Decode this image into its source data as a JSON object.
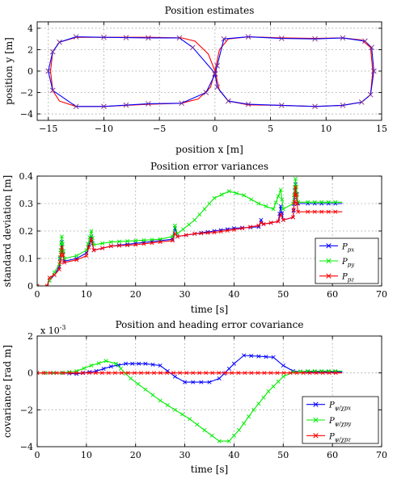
{
  "chart_data": [
    {
      "type": "line",
      "title": "Position estimates",
      "xlabel": "position x [m]",
      "ylabel": "position y [m]",
      "xlim": [
        -16,
        15
      ],
      "ylim": [
        -4.6,
        4.6
      ],
      "xticks": [
        -15,
        -10,
        -5,
        0,
        5,
        10,
        15
      ],
      "yticks": [
        -4,
        -2,
        0,
        2,
        4
      ],
      "grid": true,
      "colors": {
        "estimate": "#0000ff",
        "reference": "#ff0000",
        "marker": "#7a2a8a"
      },
      "series": [
        {
          "color": "#ff0000",
          "points": [
            [
              0,
              0
            ],
            [
              -0.6,
              1.6
            ],
            [
              -1.8,
              2.8
            ],
            [
              -3,
              3.1
            ],
            [
              -6,
              3.15
            ],
            [
              -10,
              3.15
            ],
            [
              -12.5,
              3.15
            ],
            [
              -14,
              2.7
            ],
            [
              -14.6,
              1.8
            ],
            [
              -14.8,
              0
            ],
            [
              -14.6,
              -1.8
            ],
            [
              -14,
              -2.8
            ],
            [
              -12.5,
              -3.3
            ],
            [
              -10,
              -3.3
            ],
            [
              -6,
              -3.1
            ],
            [
              -3,
              -3
            ],
            [
              -1.5,
              -2.6
            ],
            [
              -0.4,
              -1.5
            ],
            [
              0,
              0
            ],
            [
              0.4,
              2
            ],
            [
              1.2,
              3.0
            ],
            [
              3,
              3.2
            ],
            [
              6,
              3.1
            ],
            [
              9,
              3.05
            ],
            [
              11.5,
              3.1
            ],
            [
              13.2,
              2.9
            ],
            [
              14,
              2.2
            ],
            [
              14.2,
              0
            ],
            [
              14,
              -2.2
            ],
            [
              13.2,
              -2.9
            ],
            [
              11.5,
              -3.2
            ],
            [
              9,
              -3.3
            ],
            [
              6,
              -3.2
            ],
            [
              3,
              -3.15
            ],
            [
              1.2,
              -2.8
            ],
            [
              0.4,
              -1.8
            ],
            [
              0,
              0
            ]
          ]
        },
        {
          "color": "#0000ff",
          "points": [
            [
              0,
              -0.2
            ],
            [
              -2,
              2.2
            ],
            [
              -3.2,
              3.1
            ],
            [
              -6,
              3.1
            ],
            [
              -10,
              3.15
            ],
            [
              -12.5,
              3.2
            ],
            [
              -14,
              2.7
            ],
            [
              -14.6,
              1.8
            ],
            [
              -15,
              0
            ],
            [
              -14.6,
              -1.8
            ],
            [
              -12.5,
              -3.3
            ],
            [
              -10,
              -3.3
            ],
            [
              -6,
              -3.05
            ],
            [
              -3,
              -3
            ],
            [
              -0.8,
              -2
            ],
            [
              0,
              -0.3
            ],
            [
              0.2,
              0.5
            ],
            [
              0.8,
              3
            ],
            [
              3,
              3.2
            ],
            [
              6,
              3.05
            ],
            [
              9,
              3.0
            ],
            [
              11.5,
              3.1
            ],
            [
              13.5,
              2.8
            ],
            [
              14.1,
              2.2
            ],
            [
              14.3,
              0
            ],
            [
              14,
              -2.2
            ],
            [
              13.2,
              -2.9
            ],
            [
              11.5,
              -3.2
            ],
            [
              9,
              -3.3
            ],
            [
              6,
              -3.2
            ],
            [
              3,
              -3.1
            ],
            [
              1.2,
              -2.8
            ],
            [
              0.2,
              -1.5
            ],
            [
              0,
              -0.2
            ]
          ]
        }
      ]
    },
    {
      "type": "line",
      "title": "Position error variances",
      "xlabel": "time [s]",
      "ylabel": "standard deviation [m]",
      "xlim": [
        0,
        70
      ],
      "ylim": [
        0,
        0.4
      ],
      "xticks": [
        0,
        10,
        20,
        30,
        40,
        50,
        60,
        70
      ],
      "yticks": [
        0,
        0.1,
        0.2,
        0.3,
        0.4
      ],
      "ytick_labels": [
        "0",
        "0.1",
        "0.2",
        "0.3",
        "0.4"
      ],
      "grid": true,
      "legend": "bottom-right",
      "series": [
        {
          "legend_main": "P",
          "legend_sub": "px",
          "color": "#0000ff",
          "points": [
            [
              0,
              0
            ],
            [
              2,
              0
            ],
            [
              2.5,
              0.02
            ],
            [
              3.5,
              0.04
            ],
            [
              4.5,
              0.07
            ],
            [
              5,
              0.16
            ],
            [
              5.5,
              0.09
            ],
            [
              8,
              0.1
            ],
            [
              10,
              0.12
            ],
            [
              11,
              0.18
            ],
            [
              11.5,
              0.13
            ],
            [
              15,
              0.145
            ],
            [
              20,
              0.155
            ],
            [
              25,
              0.165
            ],
            [
              27.5,
              0.17
            ],
            [
              28,
              0.21
            ],
            [
              28.5,
              0.18
            ],
            [
              32,
              0.19
            ],
            [
              36,
              0.2
            ],
            [
              40,
              0.21
            ],
            [
              45,
              0.215
            ],
            [
              45.5,
              0.24
            ],
            [
              46,
              0.225
            ],
            [
              49,
              0.235
            ],
            [
              49.5,
              0.29
            ],
            [
              50,
              0.24
            ],
            [
              52,
              0.25
            ],
            [
              52.5,
              0.37
            ],
            [
              53,
              0.3
            ],
            [
              55,
              0.3
            ],
            [
              62,
              0.3
            ]
          ]
        },
        {
          "legend_main": "P",
          "legend_sub": "py",
          "color": "#00ee00",
          "points": [
            [
              0,
              0
            ],
            [
              2,
              0
            ],
            [
              2.5,
              0.02
            ],
            [
              3.5,
              0.05
            ],
            [
              4.5,
              0.08
            ],
            [
              5,
              0.18
            ],
            [
              5.5,
              0.1
            ],
            [
              8,
              0.11
            ],
            [
              10,
              0.13
            ],
            [
              11,
              0.2
            ],
            [
              11.5,
              0.15
            ],
            [
              15,
              0.16
            ],
            [
              20,
              0.165
            ],
            [
              25,
              0.17
            ],
            [
              27.5,
              0.18
            ],
            [
              28,
              0.22
            ],
            [
              28.5,
              0.19
            ],
            [
              32,
              0.24
            ],
            [
              36,
              0.32
            ],
            [
              39,
              0.345
            ],
            [
              42,
              0.33
            ],
            [
              45,
              0.3
            ],
            [
              48,
              0.28
            ],
            [
              49.5,
              0.35
            ],
            [
              50,
              0.28
            ],
            [
              52,
              0.3
            ],
            [
              52.5,
              0.39
            ],
            [
              53,
              0.305
            ],
            [
              55,
              0.305
            ],
            [
              62,
              0.305
            ]
          ]
        },
        {
          "legend_main": "P",
          "legend_sub": "pz",
          "color": "#ff0000",
          "points": [
            [
              0,
              0
            ],
            [
              2,
              0
            ],
            [
              2.5,
              0.03
            ],
            [
              3.5,
              0.04
            ],
            [
              4.5,
              0.06
            ],
            [
              5,
              0.14
            ],
            [
              5.5,
              0.085
            ],
            [
              8,
              0.095
            ],
            [
              10,
              0.11
            ],
            [
              11,
              0.17
            ],
            [
              11.5,
              0.13
            ],
            [
              15,
              0.145
            ],
            [
              20,
              0.15
            ],
            [
              25,
              0.16
            ],
            [
              27.5,
              0.165
            ],
            [
              28,
              0.19
            ],
            [
              28.5,
              0.18
            ],
            [
              32,
              0.19
            ],
            [
              36,
              0.195
            ],
            [
              40,
              0.205
            ],
            [
              45,
              0.22
            ],
            [
              45.5,
              0.23
            ],
            [
              46,
              0.225
            ],
            [
              49,
              0.235
            ],
            [
              49.5,
              0.26
            ],
            [
              50,
              0.24
            ],
            [
              52,
              0.25
            ],
            [
              52.5,
              0.36
            ],
            [
              53,
              0.27
            ],
            [
              55,
              0.27
            ],
            [
              62,
              0.27
            ]
          ]
        }
      ]
    },
    {
      "type": "line",
      "title": "Position and heading error covariance",
      "xlabel": "time [s]",
      "ylabel": "covariance [rad m]",
      "exponent_label": "x 10",
      "exponent_power": "-3",
      "xlim": [
        0,
        70
      ],
      "ylim": [
        -4,
        2
      ],
      "xticks": [
        0,
        10,
        20,
        30,
        40,
        50,
        60,
        70
      ],
      "yticks": [
        -4,
        -2,
        0,
        2
      ],
      "grid": true,
      "legend": "bottom-right",
      "series": [
        {
          "legend_main": "P",
          "legend_sub": "ψ/χpx",
          "color": "#0000ff",
          "points": [
            [
              0,
              0
            ],
            [
              5,
              0
            ],
            [
              8,
              -0.05
            ],
            [
              12,
              0.1
            ],
            [
              15,
              0.35
            ],
            [
              18,
              0.5
            ],
            [
              22,
              0.5
            ],
            [
              25,
              0.4
            ],
            [
              28,
              -0.2
            ],
            [
              30,
              -0.5
            ],
            [
              35,
              -0.5
            ],
            [
              37,
              -0.3
            ],
            [
              40,
              0.5
            ],
            [
              42,
              0.95
            ],
            [
              45,
              0.9
            ],
            [
              48,
              0.85
            ],
            [
              50,
              0.4
            ],
            [
              52,
              0.1
            ],
            [
              55,
              0.05
            ],
            [
              62,
              0.05
            ]
          ]
        },
        {
          "legend_main": "P",
          "legend_sub": "ψ/χpy",
          "color": "#00ee00",
          "points": [
            [
              0,
              0
            ],
            [
              5,
              0
            ],
            [
              8,
              0.1
            ],
            [
              11,
              0.4
            ],
            [
              14,
              0.65
            ],
            [
              16,
              0.5
            ],
            [
              19,
              -0.3
            ],
            [
              22,
              -0.9
            ],
            [
              25,
              -1.5
            ],
            [
              28,
              -2
            ],
            [
              31,
              -2.5
            ],
            [
              34,
              -3.1
            ],
            [
              37,
              -3.7
            ],
            [
              39,
              -3.7
            ],
            [
              41,
              -3.1
            ],
            [
              44,
              -2
            ],
            [
              47,
              -1
            ],
            [
              50,
              -0.2
            ],
            [
              52,
              0.05
            ],
            [
              55,
              0.1
            ],
            [
              62,
              0.1
            ]
          ]
        },
        {
          "legend_main": "P",
          "legend_sub": "ψ/χpz",
          "color": "#ff0000",
          "points": [
            [
              0,
              0
            ],
            [
              62,
              0
            ]
          ]
        }
      ]
    }
  ]
}
